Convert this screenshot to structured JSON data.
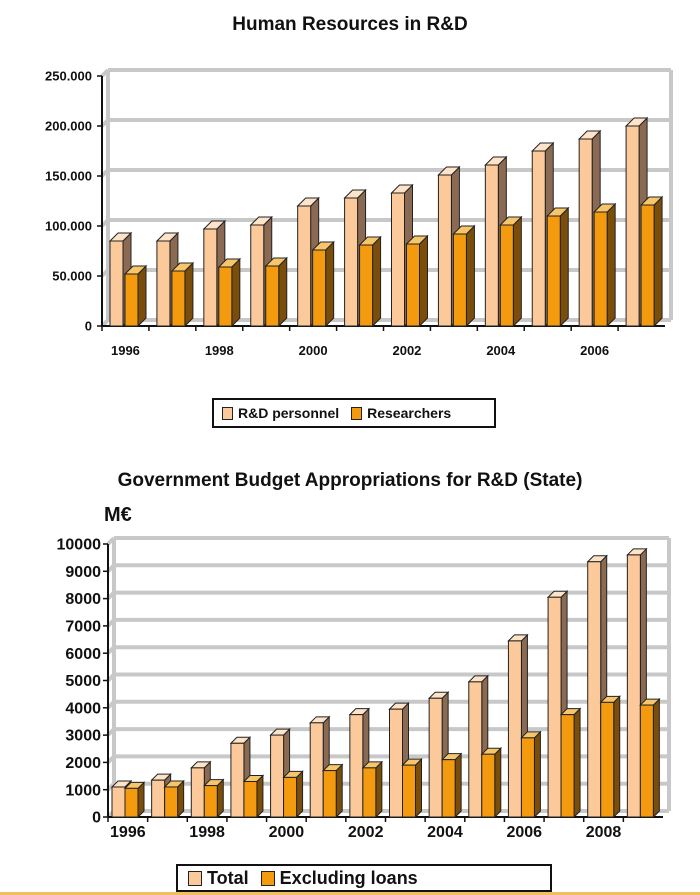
{
  "colors": {
    "series1_front": "#fcc99a",
    "series1_side": "#8a6a52",
    "series1_top": "#fde3c8",
    "series2_front": "#f39a0e",
    "series2_side": "#7a4e0a",
    "series2_top": "#f8c66a",
    "wall": "#c8c8c8"
  },
  "chart_data": [
    {
      "type": "bar",
      "title": "Human Resources in R&D",
      "categories": [
        "1996",
        "1997",
        "1998",
        "1999",
        "2000",
        "2001",
        "2002",
        "2003",
        "2004",
        "2005",
        "2006",
        "2007"
      ],
      "x_tick_labels": [
        "1996",
        "1998",
        "2000",
        "2002",
        "2004",
        "2006"
      ],
      "y_tick_labels": [
        "0",
        "50.000",
        "100.000",
        "150.000",
        "200.000",
        "250.000"
      ],
      "ylim": [
        0,
        250000
      ],
      "grid": true,
      "legend_position": "bottom",
      "series": [
        {
          "name": "R&D personnel",
          "values": [
            85000,
            85000,
            97000,
            101000,
            120000,
            128000,
            133000,
            151000,
            161000,
            175000,
            187000,
            200000
          ]
        },
        {
          "name": "Researchers",
          "values": [
            52000,
            55000,
            59000,
            60000,
            76000,
            81000,
            82000,
            92000,
            101000,
            110000,
            114000,
            121000
          ]
        }
      ]
    },
    {
      "type": "bar",
      "title": "Government Budget Appropriations for R&D (State)",
      "unit_label": "M€",
      "categories": [
        "1996",
        "1997",
        "1998",
        "1999",
        "2000",
        "2001",
        "2002",
        "2003",
        "2004",
        "2005",
        "2006",
        "2007",
        "2008",
        "2009"
      ],
      "x_tick_labels": [
        "1996",
        "1998",
        "2000",
        "2002",
        "2004",
        "2006",
        "2008"
      ],
      "y_tick_labels": [
        "0",
        "1000",
        "2000",
        "3000",
        "4000",
        "5000",
        "6000",
        "7000",
        "8000",
        "9000",
        "10000"
      ],
      "ylim": [
        0,
        10000
      ],
      "grid": true,
      "legend_position": "bottom",
      "series": [
        {
          "name": "Total",
          "values": [
            1100,
            1350,
            1800,
            2700,
            3000,
            3450,
            3750,
            3950,
            4350,
            4950,
            6450,
            8050,
            9350,
            9600
          ]
        },
        {
          "name": "Excluding loans",
          "values": [
            1050,
            1100,
            1150,
            1300,
            1450,
            1700,
            1800,
            1900,
            2100,
            2300,
            2900,
            3750,
            4200,
            4100
          ]
        }
      ]
    }
  ]
}
